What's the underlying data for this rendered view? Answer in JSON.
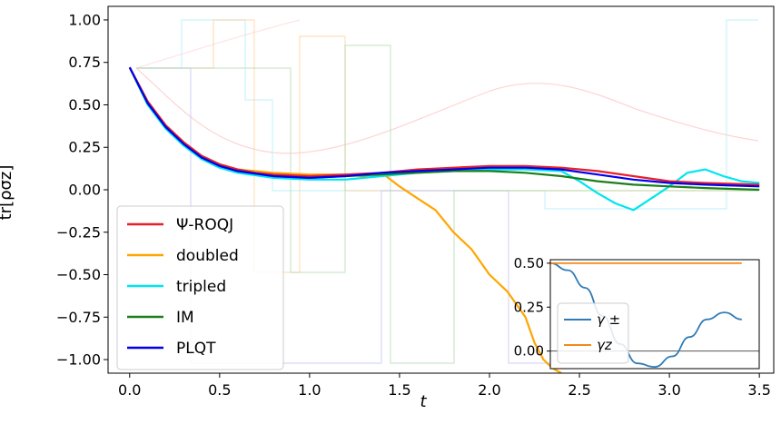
{
  "chart_data": [
    {
      "type": "line",
      "title": "",
      "xlabel": "t",
      "ylabel": "tr[ρσz]",
      "xlim": [
        -0.12,
        3.58
      ],
      "ylim": [
        -1.08,
        1.08
      ],
      "xticks": [
        "0.0",
        "0.5",
        "1.0",
        "1.5",
        "2.0",
        "2.5",
        "3.0",
        "3.5"
      ],
      "yticks": [
        "−1.00",
        "−0.75",
        "−0.50",
        "−0.25",
        "0.00",
        "0.25",
        "0.50",
        "0.75",
        "1.00"
      ],
      "legend": "lower-left",
      "grid": false,
      "series": [
        {
          "name": "Ψ-ROQJ",
          "color": "#e8202a",
          "x": [
            0,
            0.1,
            0.2,
            0.3,
            0.4,
            0.5,
            0.6,
            0.7,
            0.8,
            1.0,
            1.2,
            1.4,
            1.6,
            1.8,
            2.0,
            2.2,
            2.4,
            2.6,
            2.8,
            3.0,
            3.2,
            3.5
          ],
          "y": [
            0.72,
            0.52,
            0.38,
            0.28,
            0.2,
            0.15,
            0.12,
            0.1,
            0.09,
            0.08,
            0.09,
            0.1,
            0.12,
            0.13,
            0.14,
            0.14,
            0.13,
            0.11,
            0.08,
            0.05,
            0.04,
            0.03
          ]
        },
        {
          "name": "doubled",
          "color": "#ffa500",
          "x": [
            0,
            0.1,
            0.2,
            0.3,
            0.4,
            0.5,
            0.6,
            0.8,
            1.0,
            1.2,
            1.3,
            1.4,
            1.5,
            1.6,
            1.7,
            1.8,
            1.9,
            2.0,
            2.1,
            2.2,
            2.25,
            2.3,
            2.35,
            2.4
          ],
          "y": [
            0.72,
            0.52,
            0.38,
            0.28,
            0.2,
            0.15,
            0.12,
            0.1,
            0.09,
            0.09,
            0.08,
            0.1,
            0.02,
            -0.05,
            -0.12,
            -0.25,
            -0.35,
            -0.5,
            -0.6,
            -0.75,
            -0.9,
            -1.0,
            -1.05,
            -1.08
          ]
        },
        {
          "name": "tripled",
          "color": "#00e5ee",
          "x": [
            0,
            0.1,
            0.2,
            0.3,
            0.4,
            0.5,
            0.6,
            0.8,
            1.0,
            1.2,
            1.4,
            1.6,
            1.8,
            2.0,
            2.2,
            2.4,
            2.5,
            2.6,
            2.7,
            2.8,
            2.9,
            3.0,
            3.1,
            3.2,
            3.3,
            3.4,
            3.5
          ],
          "y": [
            0.72,
            0.5,
            0.36,
            0.26,
            0.18,
            0.13,
            0.1,
            0.07,
            0.06,
            0.06,
            0.08,
            0.1,
            0.11,
            0.12,
            0.12,
            0.11,
            0.05,
            -0.02,
            -0.08,
            -0.12,
            -0.05,
            0.02,
            0.1,
            0.12,
            0.08,
            0.05,
            0.04
          ]
        },
        {
          "name": "IM",
          "color": "#1a7f1a",
          "x": [
            0,
            0.1,
            0.2,
            0.3,
            0.4,
            0.5,
            0.6,
            0.8,
            1.0,
            1.2,
            1.4,
            1.6,
            1.8,
            2.0,
            2.2,
            2.4,
            2.6,
            2.8,
            3.0,
            3.2,
            3.5
          ],
          "y": [
            0.72,
            0.51,
            0.37,
            0.27,
            0.19,
            0.14,
            0.11,
            0.08,
            0.07,
            0.08,
            0.09,
            0.1,
            0.11,
            0.11,
            0.1,
            0.08,
            0.05,
            0.03,
            0.02,
            0.01,
            0.0
          ]
        },
        {
          "name": "PLQT",
          "color": "#0000ee",
          "x": [
            0,
            0.1,
            0.2,
            0.3,
            0.4,
            0.5,
            0.6,
            0.8,
            1.0,
            1.2,
            1.4,
            1.6,
            1.8,
            2.0,
            2.2,
            2.4,
            2.6,
            2.8,
            3.0,
            3.2,
            3.5
          ],
          "y": [
            0.72,
            0.51,
            0.37,
            0.27,
            0.19,
            0.14,
            0.11,
            0.08,
            0.07,
            0.08,
            0.1,
            0.11,
            0.12,
            0.13,
            0.13,
            0.12,
            0.09,
            0.06,
            0.04,
            0.03,
            0.02
          ]
        }
      ]
    },
    {
      "type": "line",
      "title": "",
      "xlabel": "",
      "ylabel": "",
      "xlim": [
        0,
        3.6
      ],
      "ylim": [
        -0.1,
        0.52
      ],
      "yticks": [
        "0.00",
        "0.25",
        "0.50"
      ],
      "legend": "lower-left",
      "series": [
        {
          "name": "γ ±",
          "color": "#2f7bb6",
          "x": [
            0,
            0.3,
            0.6,
            0.9,
            1.2,
            1.5,
            1.8,
            2.1,
            2.4,
            2.7,
            3.0,
            3.3
          ],
          "y": [
            0.5,
            0.46,
            0.36,
            0.2,
            0.04,
            -0.07,
            -0.09,
            -0.03,
            0.08,
            0.18,
            0.22,
            0.18
          ]
        },
        {
          "name": "γz",
          "color": "#f28a1e",
          "x": [
            0,
            3.3
          ],
          "y": [
            0.5,
            0.5
          ]
        }
      ]
    }
  ]
}
